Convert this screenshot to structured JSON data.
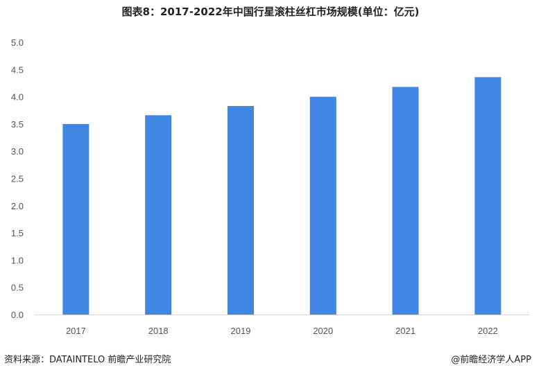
{
  "chart_data": {
    "type": "bar",
    "title": "图表8：2017-2022年中国行星滚柱丝杠市场规模(单位：亿元)",
    "categories": [
      "2017",
      "2018",
      "2019",
      "2020",
      "2021",
      "2022"
    ],
    "values": [
      3.5,
      3.66,
      3.83,
      4.0,
      4.18,
      4.36
    ],
    "ylim": [
      0,
      5
    ],
    "yticks": [
      "0.0",
      "0.5",
      "1.0",
      "1.5",
      "2.0",
      "2.5",
      "3.0",
      "3.5",
      "4.0",
      "4.5",
      "5.0"
    ],
    "grid": false,
    "bar_color": "#3f87e2",
    "xlabel": "",
    "ylabel": ""
  },
  "footer": {
    "source": "资料来源：DATAINTELO 前瞻产业研究院",
    "credit": "@前瞻经济学人APP"
  }
}
